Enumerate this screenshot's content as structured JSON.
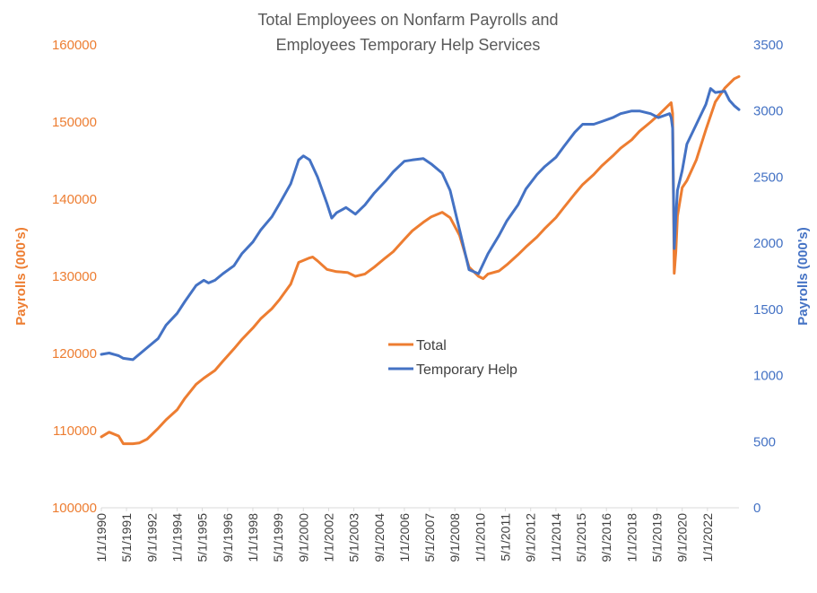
{
  "chart_data": {
    "type": "line",
    "title": [
      "Total Employees on Nonfarm Payrolls and",
      "Employees Temporary Help Services"
    ],
    "ylabel_left": "Payrolls (000's)",
    "ylabel_right": "Payrolls (000's)",
    "ylim_left": [
      100000,
      160000
    ],
    "ylim_right": [
      0,
      3500
    ],
    "yticks_left": [
      "100000",
      "110000",
      "120000",
      "130000",
      "140000",
      "150000",
      "160000"
    ],
    "yticks_right": [
      "0",
      "500",
      "1000",
      "1500",
      "2000",
      "2500",
      "3000",
      "3500"
    ],
    "xlim": [
      "1990-01-01",
      "2023-09-01"
    ],
    "xticks": [
      "1/1/1990",
      "5/1/1991",
      "9/1/1992",
      "1/1/1994",
      "5/1/1995",
      "9/1/1996",
      "1/1/1998",
      "5/1/1999",
      "9/1/2000",
      "1/1/2002",
      "5/1/2003",
      "9/1/2004",
      "1/1/2006",
      "5/1/2007",
      "9/1/2008",
      "1/1/2010",
      "5/1/2011",
      "9/1/2012",
      "1/1/2014",
      "5/1/2015",
      "9/1/2016",
      "1/1/2018",
      "5/1/2019",
      "9/1/2020",
      "1/1/2022"
    ],
    "legend_position": "center",
    "grid": false,
    "series": [
      {
        "name": "Total",
        "axis": "left",
        "color": "#ED7D31",
        "points": [
          [
            "1990-01-01",
            109200
          ],
          [
            "1990-06-01",
            109800
          ],
          [
            "1990-12-01",
            109300
          ],
          [
            "1991-03-01",
            108300
          ],
          [
            "1991-09-01",
            108300
          ],
          [
            "1992-01-01",
            108400
          ],
          [
            "1992-06-01",
            108900
          ],
          [
            "1993-01-01",
            110300
          ],
          [
            "1993-06-01",
            111400
          ],
          [
            "1994-01-01",
            112700
          ],
          [
            "1994-06-01",
            114200
          ],
          [
            "1995-01-01",
            116000
          ],
          [
            "1995-06-01",
            116800
          ],
          [
            "1996-01-01",
            117800
          ],
          [
            "1996-06-01",
            119000
          ],
          [
            "1997-01-01",
            120600
          ],
          [
            "1997-06-01",
            121800
          ],
          [
            "1998-01-01",
            123300
          ],
          [
            "1998-06-01",
            124500
          ],
          [
            "1999-01-01",
            125800
          ],
          [
            "1999-06-01",
            127000
          ],
          [
            "2000-01-01",
            129000
          ],
          [
            "2000-06-01",
            131800
          ],
          [
            "2001-01-01",
            132400
          ],
          [
            "2001-03-01",
            132500
          ],
          [
            "2001-06-01",
            132000
          ],
          [
            "2001-12-01",
            130900
          ],
          [
            "2002-06-01",
            130600
          ],
          [
            "2003-01-01",
            130500
          ],
          [
            "2003-06-01",
            130000
          ],
          [
            "2003-12-01",
            130300
          ],
          [
            "2004-06-01",
            131200
          ],
          [
            "2005-01-01",
            132400
          ],
          [
            "2005-06-01",
            133200
          ],
          [
            "2006-01-01",
            134800
          ],
          [
            "2006-06-01",
            135900
          ],
          [
            "2007-01-01",
            137000
          ],
          [
            "2007-06-01",
            137700
          ],
          [
            "2008-01-01",
            138300
          ],
          [
            "2008-06-01",
            137600
          ],
          [
            "2008-12-01",
            135300
          ],
          [
            "2009-06-01",
            131200
          ],
          [
            "2009-12-01",
            130000
          ],
          [
            "2010-03-01",
            129700
          ],
          [
            "2010-06-01",
            130300
          ],
          [
            "2011-01-01",
            130700
          ],
          [
            "2011-06-01",
            131500
          ],
          [
            "2012-01-01",
            132800
          ],
          [
            "2012-06-01",
            133800
          ],
          [
            "2013-01-01",
            135100
          ],
          [
            "2013-06-01",
            136200
          ],
          [
            "2014-01-01",
            137600
          ],
          [
            "2014-06-01",
            138900
          ],
          [
            "2015-01-01",
            140700
          ],
          [
            "2015-06-01",
            141900
          ],
          [
            "2016-01-01",
            143200
          ],
          [
            "2016-06-01",
            144300
          ],
          [
            "2017-01-01",
            145600
          ],
          [
            "2017-06-01",
            146600
          ],
          [
            "2018-01-01",
            147700
          ],
          [
            "2018-06-01",
            148800
          ],
          [
            "2019-01-01",
            150000
          ],
          [
            "2019-06-01",
            150900
          ],
          [
            "2020-01-01",
            152300
          ],
          [
            "2020-02-01",
            152500
          ],
          [
            "2020-03-01",
            151100
          ],
          [
            "2020-04-01",
            130400
          ],
          [
            "2020-05-01",
            133200
          ],
          [
            "2020-06-01",
            137800
          ],
          [
            "2020-09-01",
            141500
          ],
          [
            "2020-12-01",
            142400
          ],
          [
            "2021-06-01",
            145100
          ],
          [
            "2021-12-01",
            149000
          ],
          [
            "2022-06-01",
            152600
          ],
          [
            "2022-12-01",
            154400
          ],
          [
            "2023-06-01",
            155600
          ],
          [
            "2023-09-01",
            155900
          ]
        ]
      },
      {
        "name": "Temporary Help",
        "axis": "right",
        "color": "#4472C4",
        "points": [
          [
            "1990-01-01",
            1160
          ],
          [
            "1990-06-01",
            1170
          ],
          [
            "1990-12-01",
            1150
          ],
          [
            "1991-03-01",
            1130
          ],
          [
            "1991-09-01",
            1120
          ],
          [
            "1992-01-01",
            1160
          ],
          [
            "1992-06-01",
            1210
          ],
          [
            "1993-01-01",
            1280
          ],
          [
            "1993-06-01",
            1380
          ],
          [
            "1994-01-01",
            1470
          ],
          [
            "1994-06-01",
            1560
          ],
          [
            "1995-01-01",
            1680
          ],
          [
            "1995-06-01",
            1720
          ],
          [
            "1995-09-01",
            1700
          ],
          [
            "1996-01-01",
            1720
          ],
          [
            "1996-06-01",
            1770
          ],
          [
            "1997-01-01",
            1830
          ],
          [
            "1997-06-01",
            1920
          ],
          [
            "1998-01-01",
            2010
          ],
          [
            "1998-06-01",
            2100
          ],
          [
            "1999-01-01",
            2200
          ],
          [
            "1999-06-01",
            2300
          ],
          [
            "2000-01-01",
            2450
          ],
          [
            "2000-06-01",
            2630
          ],
          [
            "2000-09-01",
            2660
          ],
          [
            "2001-01-01",
            2630
          ],
          [
            "2001-06-01",
            2500
          ],
          [
            "2001-12-01",
            2300
          ],
          [
            "2002-03-01",
            2190
          ],
          [
            "2002-06-01",
            2230
          ],
          [
            "2002-12-01",
            2270
          ],
          [
            "2003-06-01",
            2220
          ],
          [
            "2003-12-01",
            2290
          ],
          [
            "2004-06-01",
            2380
          ],
          [
            "2005-01-01",
            2470
          ],
          [
            "2005-06-01",
            2540
          ],
          [
            "2006-01-01",
            2620
          ],
          [
            "2006-06-01",
            2630
          ],
          [
            "2007-01-01",
            2640
          ],
          [
            "2007-06-01",
            2600
          ],
          [
            "2008-01-01",
            2530
          ],
          [
            "2008-06-01",
            2400
          ],
          [
            "2008-12-01",
            2100
          ],
          [
            "2009-06-01",
            1800
          ],
          [
            "2009-12-01",
            1770
          ],
          [
            "2010-06-01",
            1920
          ],
          [
            "2011-01-01",
            2060
          ],
          [
            "2011-06-01",
            2170
          ],
          [
            "2012-01-01",
            2290
          ],
          [
            "2012-06-01",
            2410
          ],
          [
            "2013-01-01",
            2520
          ],
          [
            "2013-06-01",
            2580
          ],
          [
            "2014-01-01",
            2650
          ],
          [
            "2014-06-01",
            2730
          ],
          [
            "2015-01-01",
            2840
          ],
          [
            "2015-06-01",
            2900
          ],
          [
            "2016-01-01",
            2900
          ],
          [
            "2016-06-01",
            2920
          ],
          [
            "2017-01-01",
            2950
          ],
          [
            "2017-06-01",
            2980
          ],
          [
            "2018-01-01",
            3000
          ],
          [
            "2018-06-01",
            3000
          ],
          [
            "2019-01-01",
            2980
          ],
          [
            "2019-06-01",
            2950
          ],
          [
            "2020-01-01",
            2980
          ],
          [
            "2020-02-01",
            2950
          ],
          [
            "2020-03-01",
            2870
          ],
          [
            "2020-04-01",
            1960
          ],
          [
            "2020-05-01",
            2200
          ],
          [
            "2020-06-01",
            2400
          ],
          [
            "2020-09-01",
            2550
          ],
          [
            "2020-12-01",
            2750
          ],
          [
            "2021-06-01",
            2900
          ],
          [
            "2021-12-01",
            3050
          ],
          [
            "2022-03-01",
            3170
          ],
          [
            "2022-06-01",
            3140
          ],
          [
            "2022-12-01",
            3150
          ],
          [
            "2023-03-01",
            3080
          ],
          [
            "2023-06-01",
            3040
          ],
          [
            "2023-09-01",
            3010
          ]
        ]
      }
    ]
  }
}
